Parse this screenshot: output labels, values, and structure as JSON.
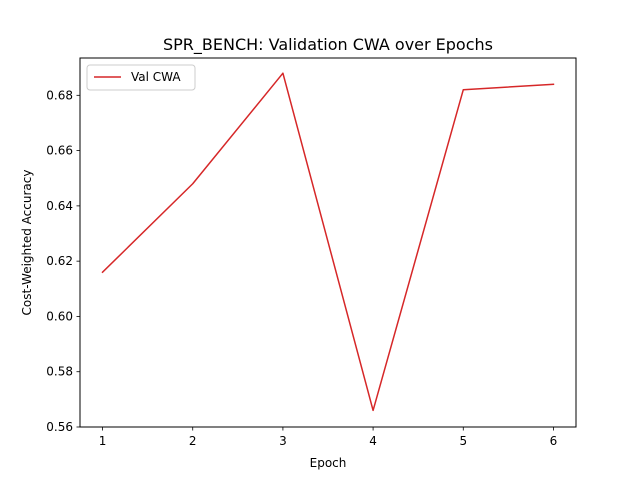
{
  "chart_data": {
    "type": "line",
    "title": "SPR_BENCH: Validation CWA over Epochs",
    "xlabel": "Epoch",
    "ylabel": "Cost-Weighted Accuracy",
    "x": [
      1,
      2,
      3,
      4,
      5,
      6
    ],
    "series": [
      {
        "name": "Val CWA",
        "values": [
          0.616,
          0.648,
          0.688,
          0.566,
          0.682,
          0.684
        ],
        "color": "#d62728"
      }
    ],
    "xlim": [
      0.75,
      6.25
    ],
    "ylim": [
      0.56,
      0.6935
    ],
    "xticks": [
      "1",
      "2",
      "3",
      "4",
      "5",
      "6"
    ],
    "yticks": [
      "0.56",
      "0.58",
      "0.60",
      "0.62",
      "0.64",
      "0.66",
      "0.68"
    ],
    "grid": false,
    "legend_position": "top-left"
  }
}
